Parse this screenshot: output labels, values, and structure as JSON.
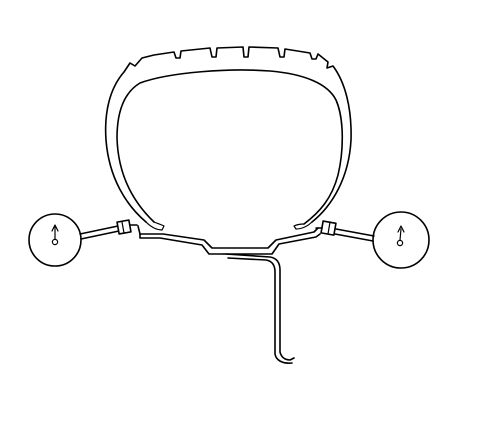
{
  "figure": {
    "labels": []
  }
}
